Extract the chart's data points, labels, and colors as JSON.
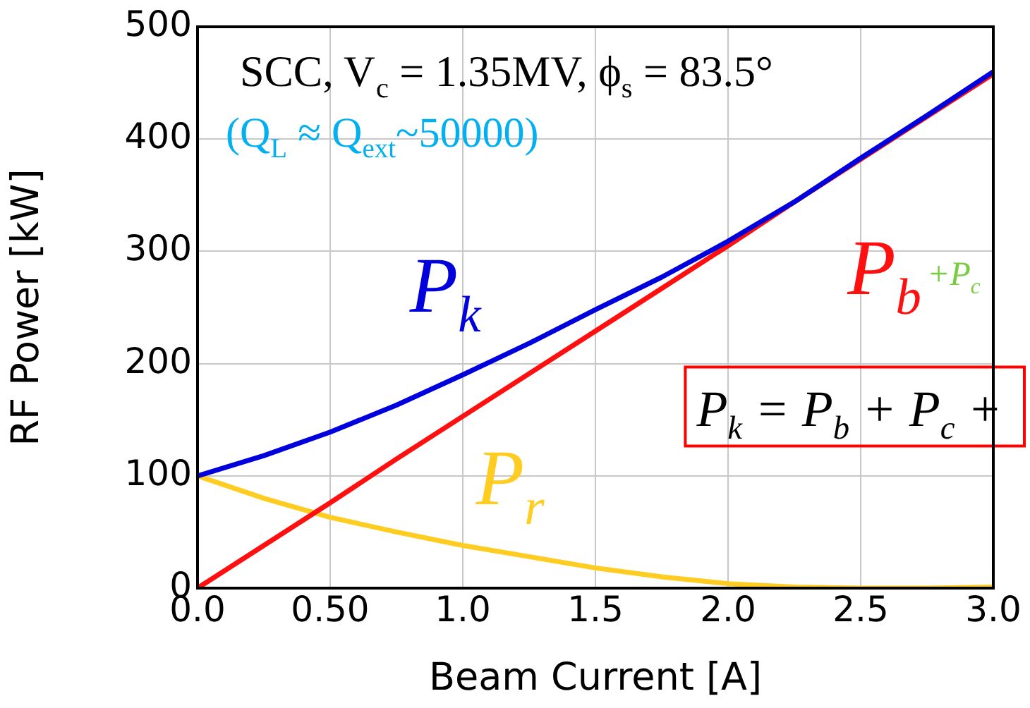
{
  "chart_data": {
    "type": "line",
    "title": "SCC, V$_{c}$ = 1.35MV, ϕ$_{s}$ = 83.5°",
    "subtitle": "(Q$_{L}$ ≈ Q$_{ext}$~50000)",
    "xlabel": "Beam Current [A]",
    "ylabel": "RF Power [kW]",
    "x": [
      0,
      0.25,
      0.5,
      0.75,
      1.0,
      1.25,
      1.5,
      1.75,
      2.0,
      2.25,
      2.5,
      2.75,
      3.0
    ],
    "series": [
      {
        "name": "P$_{k}$",
        "color": "#0000dd",
        "values": [
          100,
          118,
          139,
          163,
          190,
          218,
          248,
          277,
          309,
          344,
          383,
          421,
          460
        ]
      },
      {
        "name": "P$_{b}$",
        "color": "#ff1010",
        "values": [
          0,
          38,
          76,
          115,
          153,
          191,
          229,
          267,
          305,
          344,
          382,
          420,
          458
        ]
      },
      {
        "name": "P$_{r}$",
        "color": "#ffcc22",
        "values": [
          100,
          80,
          63,
          50,
          38,
          28,
          18,
          10,
          4,
          1,
          0,
          0,
          1
        ]
      }
    ],
    "annotations": [
      "+P$_{c}$",
      "P$_{k}$ = P$_{b}$ + P$_{c}$ +"
    ],
    "xlim": [
      0,
      3.0
    ],
    "xticks": [
      {
        "value": 0,
        "label": "0.0"
      },
      {
        "value": 0.5,
        "label": "0.50"
      },
      {
        "value": 1,
        "label": "1.0"
      },
      {
        "value": 1.5,
        "label": "1.5"
      },
      {
        "value": 2,
        "label": "2.0"
      },
      {
        "value": 2.5,
        "label": "2.5"
      },
      {
        "value": 3,
        "label": "3.0"
      }
    ],
    "ylim": [
      0,
      500
    ],
    "yticks": [
      0,
      100,
      200,
      300,
      400,
      500
    ],
    "grid": true,
    "legend": false,
    "marker": "none",
    "line_style": "solid"
  }
}
